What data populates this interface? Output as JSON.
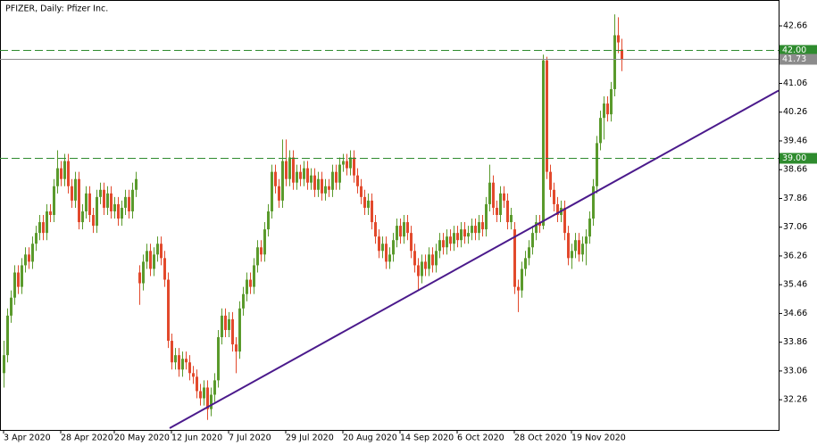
{
  "chart_data": {
    "type": "candlestick",
    "title": "PFIZER, Daily:  Pfizer Inc.",
    "candles": [
      [
        33.0,
        33.9,
        32.6,
        33.5
      ],
      [
        33.5,
        34.8,
        33.3,
        34.6
      ],
      [
        34.6,
        35.3,
        34.4,
        35.1
      ],
      [
        35.1,
        36.0,
        34.9,
        35.8
      ],
      [
        35.8,
        36.0,
        35.2,
        35.4
      ],
      [
        35.4,
        36.2,
        35.2,
        36.0
      ],
      [
        36.0,
        36.5,
        35.8,
        36.3
      ],
      [
        36.3,
        36.5,
        35.9,
        36.1
      ],
      [
        36.1,
        36.8,
        35.9,
        36.6
      ],
      [
        36.6,
        37.1,
        36.4,
        36.9
      ],
      [
        36.9,
        37.4,
        36.7,
        37.2
      ],
      [
        37.2,
        37.4,
        36.7,
        36.9
      ],
      [
        36.9,
        37.7,
        36.7,
        37.5
      ],
      [
        37.5,
        37.7,
        37.2,
        37.4
      ],
      [
        37.4,
        38.4,
        37.2,
        38.2
      ],
      [
        38.2,
        39.2,
        38.0,
        38.7
      ],
      [
        38.7,
        38.9,
        38.2,
        38.4
      ],
      [
        38.4,
        39.1,
        38.2,
        38.9
      ],
      [
        38.9,
        39.1,
        38.0,
        38.2
      ],
      [
        38.2,
        38.4,
        37.6,
        37.8
      ],
      [
        37.8,
        38.6,
        37.6,
        38.4
      ],
      [
        38.4,
        38.6,
        37.0,
        37.2
      ],
      [
        37.2,
        37.7,
        37.0,
        37.5
      ],
      [
        37.5,
        38.2,
        37.3,
        38.0
      ],
      [
        38.0,
        38.2,
        37.2,
        37.4
      ],
      [
        37.4,
        37.6,
        36.9,
        37.1
      ],
      [
        37.1,
        38.1,
        36.9,
        37.9
      ],
      [
        37.9,
        38.3,
        37.7,
        38.1
      ],
      [
        38.1,
        38.3,
        37.4,
        37.6
      ],
      [
        37.6,
        38.2,
        37.4,
        38.0
      ],
      [
        38.0,
        38.2,
        37.3,
        37.5
      ],
      [
        37.5,
        37.9,
        37.3,
        37.7
      ],
      [
        37.7,
        37.9,
        37.1,
        37.3
      ],
      [
        37.3,
        37.8,
        37.1,
        37.6
      ],
      [
        37.6,
        38.1,
        37.4,
        37.9
      ],
      [
        37.9,
        38.1,
        37.3,
        37.5
      ],
      [
        37.5,
        38.3,
        37.3,
        38.1
      ],
      [
        38.1,
        38.6,
        37.9,
        38.4
      ],
      [
        35.8,
        36.0,
        34.9,
        35.5
      ],
      [
        35.5,
        36.3,
        35.3,
        36.1
      ],
      [
        36.1,
        36.6,
        35.9,
        36.4
      ],
      [
        36.4,
        36.6,
        35.7,
        35.9
      ],
      [
        35.9,
        36.5,
        35.7,
        36.3
      ],
      [
        36.3,
        36.8,
        36.1,
        36.6
      ],
      [
        36.6,
        36.8,
        36.0,
        36.2
      ],
      [
        36.2,
        36.4,
        35.4,
        35.6
      ],
      [
        35.6,
        35.8,
        33.7,
        33.9
      ],
      [
        33.9,
        34.1,
        33.1,
        33.3
      ],
      [
        33.3,
        33.7,
        33.1,
        33.5
      ],
      [
        33.5,
        33.7,
        32.9,
        33.1
      ],
      [
        33.1,
        33.6,
        32.9,
        33.4
      ],
      [
        33.4,
        33.6,
        33.1,
        33.3
      ],
      [
        33.3,
        33.5,
        32.8,
        33.0
      ],
      [
        33.0,
        33.2,
        32.7,
        32.9
      ],
      [
        32.9,
        33.1,
        32.3,
        32.5
      ],
      [
        32.5,
        32.7,
        32.1,
        32.3
      ],
      [
        32.3,
        32.8,
        32.1,
        32.6
      ],
      [
        32.6,
        32.8,
        31.7,
        32.0
      ],
      [
        32.0,
        32.6,
        31.8,
        32.4
      ],
      [
        32.4,
        33.0,
        32.2,
        32.8
      ],
      [
        32.8,
        34.2,
        32.6,
        34.0
      ],
      [
        34.0,
        34.8,
        33.8,
        34.6
      ],
      [
        34.6,
        34.8,
        34.0,
        34.2
      ],
      [
        34.2,
        34.7,
        34.0,
        34.5
      ],
      [
        34.5,
        34.7,
        33.6,
        33.8
      ],
      [
        33.8,
        34.0,
        33.0,
        33.6
      ],
      [
        33.6,
        35.0,
        33.4,
        34.8
      ],
      [
        34.8,
        35.4,
        34.6,
        35.2
      ],
      [
        35.2,
        35.8,
        35.0,
        35.6
      ],
      [
        35.6,
        35.8,
        35.2,
        35.4
      ],
      [
        35.4,
        36.2,
        35.2,
        36.0
      ],
      [
        36.0,
        36.7,
        35.8,
        36.5
      ],
      [
        36.5,
        36.7,
        36.1,
        36.3
      ],
      [
        36.3,
        37.2,
        36.1,
        37.0
      ],
      [
        37.0,
        37.7,
        36.8,
        37.5
      ],
      [
        37.5,
        38.8,
        37.3,
        38.6
      ],
      [
        38.6,
        38.8,
        38.0,
        38.2
      ],
      [
        38.2,
        38.4,
        37.6,
        37.8
      ],
      [
        37.8,
        39.5,
        37.6,
        38.9
      ],
      [
        38.9,
        39.5,
        38.2,
        38.4
      ],
      [
        38.4,
        39.2,
        38.2,
        39.0
      ],
      [
        39.0,
        39.2,
        38.1,
        38.3
      ],
      [
        38.3,
        38.8,
        38.1,
        38.6
      ],
      [
        38.6,
        38.8,
        38.2,
        38.4
      ],
      [
        38.4,
        38.9,
        38.2,
        38.7
      ],
      [
        38.7,
        38.9,
        38.1,
        38.3
      ],
      [
        38.3,
        38.7,
        38.1,
        38.5
      ],
      [
        38.5,
        38.7,
        37.9,
        38.1
      ],
      [
        38.1,
        38.6,
        37.9,
        38.4
      ],
      [
        38.4,
        38.6,
        37.8,
        38.0
      ],
      [
        38.0,
        38.4,
        37.8,
        38.2
      ],
      [
        38.2,
        38.4,
        37.9,
        38.1
      ],
      [
        38.1,
        38.8,
        37.9,
        38.6
      ],
      [
        38.6,
        38.8,
        38.1,
        38.3
      ],
      [
        38.3,
        39.0,
        38.1,
        38.8
      ],
      [
        38.8,
        39.1,
        38.6,
        38.9
      ],
      [
        38.9,
        39.1,
        38.5,
        38.7
      ],
      [
        38.7,
        39.2,
        38.5,
        39.0
      ],
      [
        39.0,
        39.2,
        38.3,
        38.5
      ],
      [
        38.5,
        38.7,
        38.0,
        38.2
      ],
      [
        38.2,
        38.4,
        37.7,
        37.9
      ],
      [
        37.9,
        38.1,
        37.4,
        37.6
      ],
      [
        37.6,
        38.0,
        37.4,
        37.8
      ],
      [
        37.8,
        38.0,
        37.0,
        37.2
      ],
      [
        37.2,
        37.4,
        36.6,
        36.8
      ],
      [
        36.8,
        37.0,
        36.2,
        36.4
      ],
      [
        36.4,
        36.8,
        36.2,
        36.6
      ],
      [
        36.6,
        36.8,
        35.9,
        36.1
      ],
      [
        36.1,
        36.5,
        35.9,
        36.3
      ],
      [
        36.3,
        36.9,
        36.1,
        36.7
      ],
      [
        36.7,
        37.3,
        36.5,
        37.1
      ],
      [
        37.1,
        37.3,
        36.6,
        36.8
      ],
      [
        36.8,
        37.4,
        36.6,
        37.2
      ],
      [
        37.2,
        37.4,
        36.7,
        36.9
      ],
      [
        36.9,
        37.1,
        36.2,
        36.4
      ],
      [
        36.4,
        36.6,
        35.8,
        36.0
      ],
      [
        36.0,
        36.2,
        35.3,
        35.7
      ],
      [
        35.7,
        36.3,
        35.5,
        36.1
      ],
      [
        36.1,
        36.3,
        35.7,
        35.9
      ],
      [
        35.9,
        36.5,
        35.7,
        36.3
      ],
      [
        36.3,
        36.5,
        35.8,
        36.0
      ],
      [
        36.0,
        36.6,
        35.8,
        36.4
      ],
      [
        36.4,
        36.9,
        36.2,
        36.7
      ],
      [
        36.7,
        36.9,
        36.3,
        36.5
      ],
      [
        36.5,
        37.0,
        36.3,
        36.8
      ],
      [
        36.8,
        37.0,
        36.4,
        36.6
      ],
      [
        36.6,
        37.1,
        36.4,
        36.9
      ],
      [
        36.9,
        37.1,
        36.5,
        36.7
      ],
      [
        36.7,
        37.2,
        36.5,
        37.0
      ],
      [
        37.0,
        37.2,
        36.6,
        36.8
      ],
      [
        36.8,
        37.1,
        36.6,
        36.9
      ],
      [
        36.9,
        37.3,
        36.7,
        37.1
      ],
      [
        37.1,
        37.3,
        36.7,
        36.9
      ],
      [
        36.9,
        37.4,
        36.7,
        37.2
      ],
      [
        37.2,
        37.4,
        36.8,
        37.0
      ],
      [
        37.0,
        37.9,
        36.8,
        37.7
      ],
      [
        37.7,
        38.8,
        37.5,
        38.3
      ],
      [
        38.3,
        38.5,
        37.4,
        37.6
      ],
      [
        37.6,
        37.8,
        37.2,
        37.4
      ],
      [
        37.4,
        38.2,
        37.2,
        38.0
      ],
      [
        38.0,
        38.2,
        37.6,
        37.8
      ],
      [
        37.8,
        38.0,
        37.0,
        37.2
      ],
      [
        37.2,
        37.6,
        37.0,
        37.4
      ],
      [
        37.0,
        37.2,
        35.2,
        35.4
      ],
      [
        35.4,
        35.6,
        34.7,
        35.3
      ],
      [
        35.3,
        36.1,
        35.1,
        35.9
      ],
      [
        35.9,
        36.4,
        35.7,
        36.2
      ],
      [
        36.2,
        36.7,
        36.0,
        36.5
      ],
      [
        36.5,
        37.1,
        36.3,
        36.9
      ],
      [
        36.9,
        37.4,
        36.7,
        37.2
      ],
      [
        37.2,
        37.4,
        36.9,
        37.1
      ],
      [
        37.1,
        41.86,
        37.0,
        41.7
      ],
      [
        41.7,
        41.8,
        38.4,
        38.6
      ],
      [
        38.6,
        38.8,
        37.9,
        38.1
      ],
      [
        38.1,
        38.3,
        37.5,
        37.7
      ],
      [
        37.7,
        37.9,
        37.2,
        37.4
      ],
      [
        37.4,
        37.8,
        37.2,
        37.6
      ],
      [
        37.6,
        37.8,
        36.7,
        36.9
      ],
      [
        36.9,
        37.1,
        36.0,
        36.2
      ],
      [
        36.2,
        36.6,
        35.9,
        36.4
      ],
      [
        36.4,
        36.9,
        36.2,
        36.7
      ],
      [
        36.7,
        36.9,
        36.1,
        36.3
      ],
      [
        36.3,
        36.8,
        36.1,
        36.6
      ],
      [
        36.6,
        37.0,
        36.0,
        36.8
      ],
      [
        36.8,
        37.5,
        36.6,
        37.3
      ],
      [
        37.3,
        38.4,
        37.1,
        38.2
      ],
      [
        38.2,
        39.6,
        38.0,
        39.4
      ],
      [
        39.4,
        40.3,
        39.2,
        40.1
      ],
      [
        40.1,
        40.7,
        39.5,
        40.5
      ],
      [
        40.5,
        40.7,
        40.0,
        40.2
      ],
      [
        40.2,
        41.1,
        40.0,
        40.9
      ],
      [
        40.9,
        42.98,
        40.7,
        42.4
      ],
      [
        42.4,
        42.9,
        41.9,
        42.2
      ],
      [
        42.0,
        42.3,
        41.4,
        41.73
      ]
    ],
    "up_color": "#5a9a2c",
    "down_color": "#e2492c",
    "xlim": [
      -1,
      217
    ],
    "ylim": [
      31.42,
      43.38
    ],
    "yticks": [
      32.26,
      33.06,
      33.86,
      34.66,
      35.46,
      36.26,
      37.06,
      37.86,
      38.66,
      39.46,
      40.26,
      41.06,
      42.66
    ],
    "xticks": [
      {
        "value": 0,
        "label": "3 Apr 2020"
      },
      {
        "value": 16,
        "label": "28 Apr 2020"
      },
      {
        "value": 31,
        "label": "20 May 2020"
      },
      {
        "value": 47,
        "label": "12 Jun 2020"
      },
      {
        "value": 63,
        "label": "7 Jul 2020"
      },
      {
        "value": 79,
        "label": "29 Jul 2020"
      },
      {
        "value": 95,
        "label": "20 Aug 2020"
      },
      {
        "value": 111,
        "label": "14 Sep 2020"
      },
      {
        "value": 127,
        "label": "6 Oct 2020"
      },
      {
        "value": 143,
        "label": "28 Oct 2020"
      },
      {
        "value": 159,
        "label": "19 Nov 2020"
      }
    ],
    "levels": [
      {
        "value": 42,
        "label": "42.00"
      },
      {
        "value": 39,
        "label": "39.00"
      }
    ],
    "level_color": "#2e8b2e",
    "last_price": {
      "value": 41.73,
      "label": "41.73"
    },
    "last_price_color": "#8c8c8c",
    "trendline": {
      "x": [
        46.5,
        217
      ],
      "y": [
        31.47,
        40.86
      ],
      "color": "#4b1a8c"
    }
  }
}
